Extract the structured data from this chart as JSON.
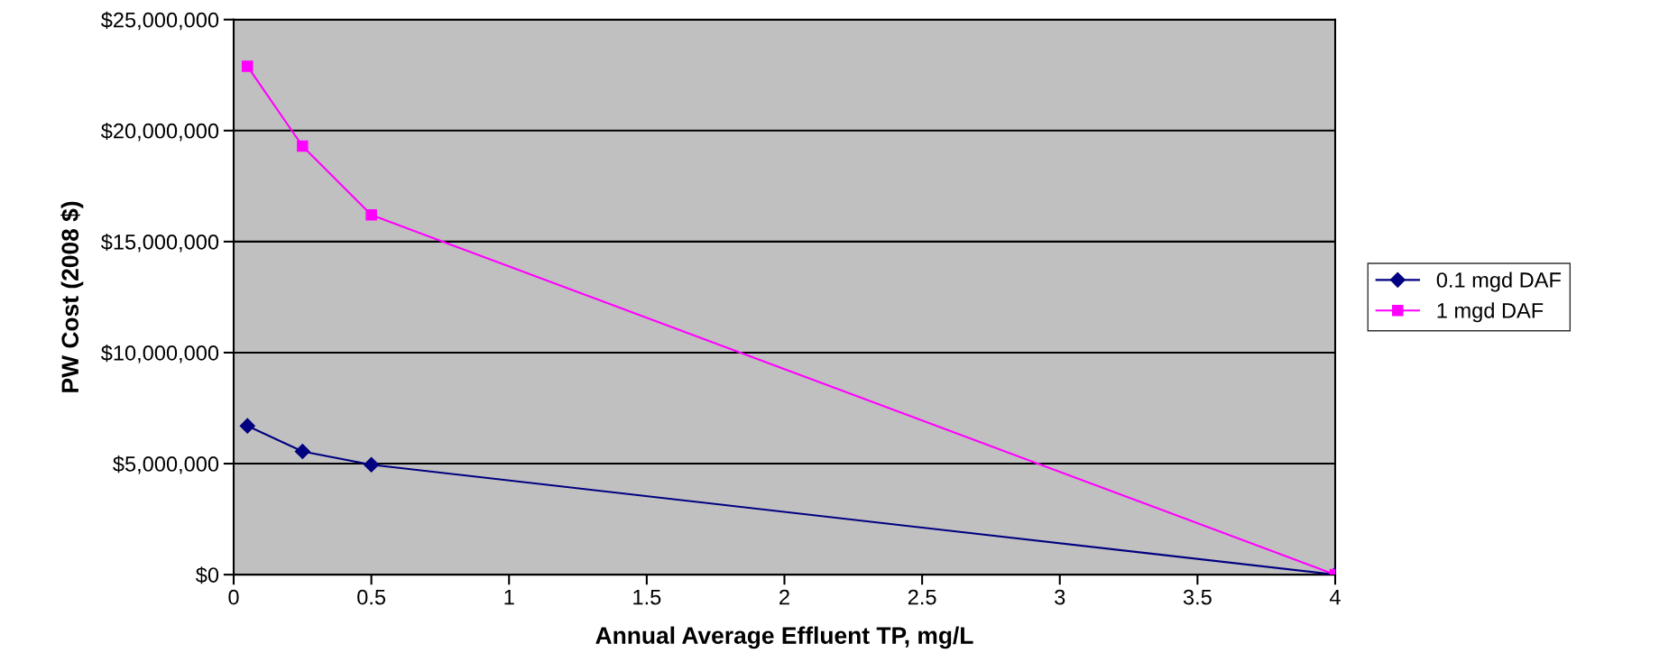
{
  "chart_data": {
    "type": "line",
    "xlabel": "Annual Average Effluent TP, mg/L",
    "ylabel": "PW Cost (2008 $)",
    "xlim": [
      0,
      4
    ],
    "xticks": [
      0,
      0.5,
      1,
      1.5,
      2,
      2.5,
      3,
      3.5,
      4
    ],
    "ylim": [
      0,
      25000000
    ],
    "yticks": [
      {
        "value": 0,
        "label": "$0"
      },
      {
        "value": 5000000,
        "label": "$5,000,000"
      },
      {
        "value": 10000000,
        "label": "$10,000,000"
      },
      {
        "value": 15000000,
        "label": "$15,000,000"
      },
      {
        "value": 20000000,
        "label": "$20,000,000"
      },
      {
        "value": 25000000,
        "label": "$25,000,000"
      }
    ],
    "grid": "y",
    "legend": "right",
    "series": [
      {
        "name": "0.1 mgd DAF",
        "color": "#000080",
        "marker": "diamond",
        "x": [
          0.05,
          0.25,
          0.5,
          4
        ],
        "values": [
          6700000,
          5550000,
          4950000,
          0
        ]
      },
      {
        "name": "1 mgd DAF",
        "color": "#ff00ff",
        "marker": "square",
        "x": [
          0.05,
          0.25,
          0.5,
          4
        ],
        "values": [
          22900000,
          19300000,
          16200000,
          0
        ]
      }
    ]
  }
}
